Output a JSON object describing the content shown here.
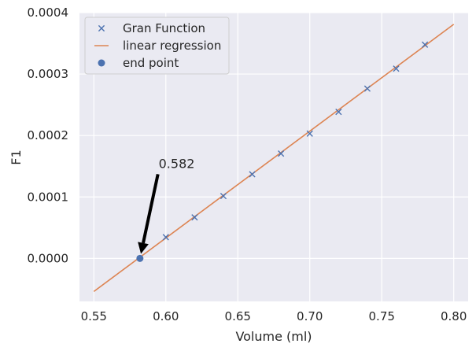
{
  "chart_data": {
    "type": "scatter",
    "title": "",
    "xlabel": "Volume (ml)",
    "ylabel": "F1",
    "xlim": [
      0.54,
      0.81
    ],
    "ylim": [
      -7e-05,
      0.0004
    ],
    "grid": true,
    "legend_position": "top-left",
    "x_ticks": [
      0.55,
      0.6,
      0.65,
      0.7,
      0.75,
      0.8
    ],
    "x_tick_labels": [
      "0.55",
      "0.60",
      "0.65",
      "0.70",
      "0.75",
      "0.80"
    ],
    "y_ticks": [
      0.0,
      0.0001,
      0.0002,
      0.0003,
      0.0004
    ],
    "y_tick_labels": [
      "0.0000",
      "0.0001",
      "0.0002",
      "0.0003",
      "0.0004"
    ],
    "series": [
      {
        "name": "Gran Function",
        "kind": "scatter",
        "marker": "x",
        "color": "#4c72b0",
        "x": [
          0.6,
          0.62,
          0.64,
          0.66,
          0.68,
          0.7,
          0.72,
          0.74,
          0.76,
          0.78
        ],
        "y": [
          3.45e-05,
          6.68e-05,
          0.0001015,
          0.0001369,
          0.0001706,
          0.0002031,
          0.0002385,
          0.0002763,
          0.0003088,
          0.0003478
        ]
      },
      {
        "name": "linear regression",
        "kind": "line",
        "color": "#dd8452",
        "x": [
          0.55,
          0.8
        ],
        "y": [
          -5.38e-05,
          0.000381
        ]
      },
      {
        "name": "end point",
        "kind": "scatter",
        "marker": "o",
        "color": "#4c72b0",
        "x": [
          0.582
        ],
        "y": [
          0.0
        ]
      }
    ],
    "annotations": [
      {
        "text": "0.582",
        "target_x": 0.582,
        "target_y": 0.0,
        "text_x": 0.595,
        "text_y": 0.000155,
        "arrow_from_x": 0.5945,
        "arrow_from_y": 0.000137
      }
    ]
  }
}
